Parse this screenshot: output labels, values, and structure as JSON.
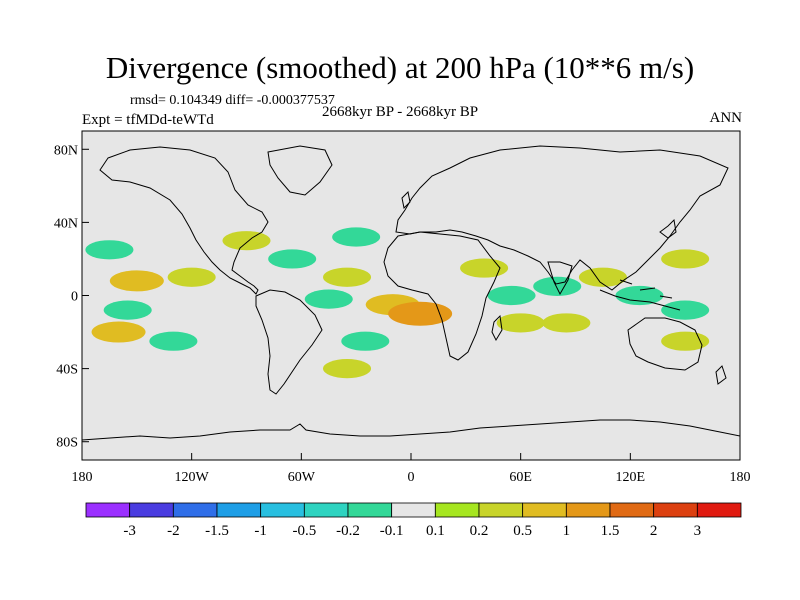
{
  "title": "Divergence (smoothed) at 200 hPa (10**6 m/s)",
  "stats_text": "rmsd= 0.104349 diff= -0.000377537",
  "experiment_text": "Expt = tfMDd-teWTd",
  "period_text": "2668kyr BP - 2668kyr BP",
  "season_text": "ANN",
  "map": {
    "projection": "cylindrical-equidistant",
    "lon_range": [
      -180,
      180
    ],
    "lat_range": [
      -90,
      90
    ],
    "y_ticks": [
      {
        "value": 80,
        "label": "80N"
      },
      {
        "value": 40,
        "label": "40N"
      },
      {
        "value": 0,
        "label": "0"
      },
      {
        "value": -40,
        "label": "40S"
      },
      {
        "value": -80,
        "label": "80S"
      }
    ],
    "x_ticks": [
      {
        "value": -180,
        "label": "180"
      },
      {
        "value": -120,
        "label": "120W"
      },
      {
        "value": -60,
        "label": "60W"
      },
      {
        "value": 0,
        "label": "0"
      },
      {
        "value": 60,
        "label": "60E"
      },
      {
        "value": 120,
        "label": "120E"
      },
      {
        "value": 180,
        "label": "180"
      }
    ],
    "background_color": "#e6e6e6"
  },
  "colorbar": {
    "colors": [
      "#9b30ff",
      "#4a3ce0",
      "#2f6ee8",
      "#1e9ee6",
      "#28bfe0",
      "#2ed3c0",
      "#33d898",
      "#e6e6e6",
      "#a6e620",
      "#c8d42a",
      "#e0bc22",
      "#e49818",
      "#e06a14",
      "#dc4010",
      "#e01a10"
    ],
    "labels": [
      "-3",
      "-2",
      "-1.5",
      "-1",
      "-0.5",
      "-0.2",
      "-0.1",
      "0.1",
      "0.2",
      "0.5",
      "1",
      "1.5",
      "2",
      "3"
    ]
  },
  "chart_data": {
    "type": "heatmap",
    "title": "Divergence (smoothed) at 200 hPa (10**6 m/s)",
    "units": "10**6 m/s",
    "level": "200 hPa",
    "x_axis": "longitude",
    "y_axis": "latitude",
    "levels": [
      -3,
      -2,
      -1.5,
      -1,
      -0.5,
      -0.2,
      -0.1,
      0.1,
      0.2,
      0.5,
      1,
      1.5,
      2,
      3
    ],
    "anomaly_regions": [
      {
        "lon": -165,
        "lat": 25,
        "value": -0.2
      },
      {
        "lon": -150,
        "lat": 8,
        "value": 0.5
      },
      {
        "lon": -120,
        "lat": 10,
        "value": 0.2
      },
      {
        "lon": -155,
        "lat": -8,
        "value": -0.2
      },
      {
        "lon": -160,
        "lat": -20,
        "value": 0.5
      },
      {
        "lon": -130,
        "lat": -25,
        "value": -0.2
      },
      {
        "lon": -90,
        "lat": 30,
        "value": 0.2
      },
      {
        "lon": -65,
        "lat": 20,
        "value": -0.2
      },
      {
        "lon": -30,
        "lat": 32,
        "value": -0.2
      },
      {
        "lon": -35,
        "lat": 10,
        "value": 0.2
      },
      {
        "lon": -45,
        "lat": -2,
        "value": -0.2
      },
      {
        "lon": -10,
        "lat": -5,
        "value": 0.5
      },
      {
        "lon": 5,
        "lat": -10,
        "value": 1
      },
      {
        "lon": -25,
        "lat": -25,
        "value": -0.2
      },
      {
        "lon": -35,
        "lat": -40,
        "value": 0.2
      },
      {
        "lon": 40,
        "lat": 15,
        "value": 0.2
      },
      {
        "lon": 55,
        "lat": 0,
        "value": -0.2
      },
      {
        "lon": 60,
        "lat": -15,
        "value": 0.2
      },
      {
        "lon": 80,
        "lat": 5,
        "value": -0.2
      },
      {
        "lon": 85,
        "lat": -15,
        "value": 0.2
      },
      {
        "lon": 105,
        "lat": 10,
        "value": 0.2
      },
      {
        "lon": 125,
        "lat": 0,
        "value": -0.2
      },
      {
        "lon": 150,
        "lat": 20,
        "value": 0.2
      },
      {
        "lon": 150,
        "lat": -8,
        "value": -0.2
      },
      {
        "lon": 150,
        "lat": -25,
        "value": 0.2
      }
    ]
  }
}
